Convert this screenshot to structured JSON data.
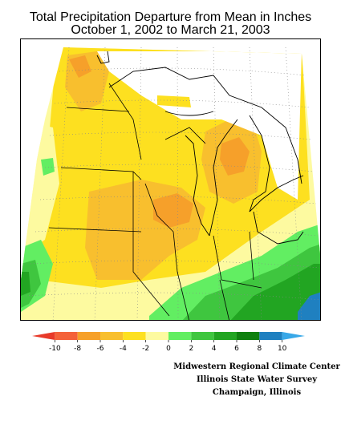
{
  "title": {
    "line1": "Total Precipitation Departure from Mean in Inches",
    "line2": "October 1, 2002 to March 21, 2003"
  },
  "legend": {
    "bins": [
      {
        "color": "#e83a2a"
      },
      {
        "color": "#f4623a"
      },
      {
        "color": "#f6a02a"
      },
      {
        "color": "#f8bf2e"
      },
      {
        "color": "#fde020"
      },
      {
        "color": "#fdfaa0"
      },
      {
        "color": "#62ee62"
      },
      {
        "color": "#3fc63f"
      },
      {
        "color": "#22a522"
      },
      {
        "color": "#0f800f"
      },
      {
        "color": "#1f80c0"
      },
      {
        "color": "#38a8e8"
      }
    ],
    "tick_labels": [
      "-10",
      "-8",
      "-6",
      "-4",
      "-2",
      "0",
      "2",
      "4",
      "6",
      "8",
      "10"
    ]
  },
  "credits": {
    "line1": "Midwestern Regional Climate Center",
    "line2": "Illinois State Water Survey",
    "line3": "Champaign, Illinois"
  }
}
